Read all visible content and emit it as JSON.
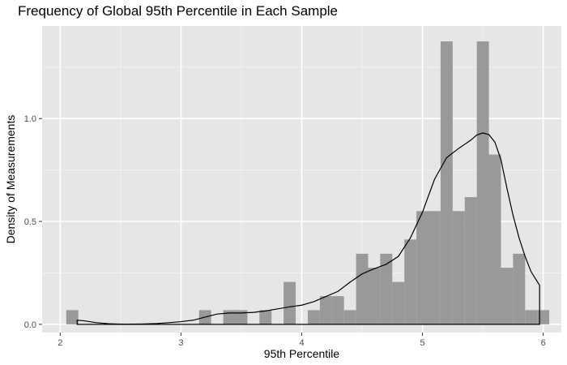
{
  "chart_data": {
    "type": "histogram",
    "title": "Frequency of Global 95th Percentile in Each Sample",
    "xlabel": "95th Percentile",
    "ylabel": "Density of Measurements",
    "xlim": [
      1.85,
      6.15
    ],
    "ylim": [
      -0.04,
      1.45
    ],
    "x_ticks": [
      2,
      3,
      4,
      5,
      6
    ],
    "x_tick_labels": [
      "2",
      "3",
      "4",
      "5",
      "6"
    ],
    "y_ticks": [
      0,
      0.5,
      1.0
    ],
    "y_tick_labels": [
      "0.0",
      "0.5",
      "1.0"
    ],
    "bin_width": 0.1,
    "bins": [
      {
        "x": 2.1,
        "density": 0.069
      },
      {
        "x": 3.2,
        "density": 0.069
      },
      {
        "x": 3.4,
        "density": 0.069
      },
      {
        "x": 3.5,
        "density": 0.069
      },
      {
        "x": 3.7,
        "density": 0.069
      },
      {
        "x": 3.9,
        "density": 0.206
      },
      {
        "x": 4.1,
        "density": 0.069
      },
      {
        "x": 4.2,
        "density": 0.137
      },
      {
        "x": 4.3,
        "density": 0.137
      },
      {
        "x": 4.4,
        "density": 0.069
      },
      {
        "x": 4.5,
        "density": 0.343
      },
      {
        "x": 4.6,
        "density": 0.275
      },
      {
        "x": 4.7,
        "density": 0.343
      },
      {
        "x": 4.8,
        "density": 0.206
      },
      {
        "x": 4.9,
        "density": 0.412
      },
      {
        "x": 5.0,
        "density": 0.55
      },
      {
        "x": 5.1,
        "density": 0.55
      },
      {
        "x": 5.2,
        "density": 1.375
      },
      {
        "x": 5.3,
        "density": 0.55
      },
      {
        "x": 5.4,
        "density": 0.618
      },
      {
        "x": 5.5,
        "density": 1.375
      },
      {
        "x": 5.6,
        "density": 0.825
      },
      {
        "x": 5.7,
        "density": 0.275
      },
      {
        "x": 5.8,
        "density": 0.343
      },
      {
        "x": 5.9,
        "density": 0.069
      },
      {
        "x": 6.0,
        "density": 0.069
      }
    ],
    "density_curve": {
      "x": [
        2.14,
        2.2,
        2.3,
        2.4,
        2.5,
        2.6,
        2.7,
        2.8,
        2.9,
        3.0,
        3.1,
        3.2,
        3.3,
        3.4,
        3.5,
        3.6,
        3.7,
        3.8,
        3.9,
        4.0,
        4.1,
        4.2,
        4.3,
        4.4,
        4.5,
        4.6,
        4.7,
        4.8,
        4.9,
        5.0,
        5.1,
        5.2,
        5.3,
        5.4,
        5.45,
        5.5,
        5.55,
        5.6,
        5.65,
        5.7,
        5.75,
        5.8,
        5.85,
        5.9,
        5.97
      ],
      "y": [
        0.02,
        0.017,
        0.008,
        0.003,
        0.001,
        0.001,
        0.002,
        0.004,
        0.008,
        0.013,
        0.02,
        0.035,
        0.05,
        0.055,
        0.055,
        0.058,
        0.065,
        0.075,
        0.085,
        0.093,
        0.11,
        0.135,
        0.16,
        0.205,
        0.245,
        0.27,
        0.292,
        0.33,
        0.42,
        0.545,
        0.705,
        0.81,
        0.855,
        0.895,
        0.92,
        0.93,
        0.922,
        0.885,
        0.8,
        0.66,
        0.53,
        0.42,
        0.33,
        0.255,
        0.19
      ]
    },
    "density_curve_end_y": 0.0,
    "grid": true,
    "legend": "none",
    "colors": {
      "panel_background": "#e6e6e6",
      "grid_major": "#ffffff",
      "bar_fill": "#999999",
      "curve": "#000000",
      "tick_text": "#4d4d4d",
      "tick_mark": "#333333"
    }
  }
}
